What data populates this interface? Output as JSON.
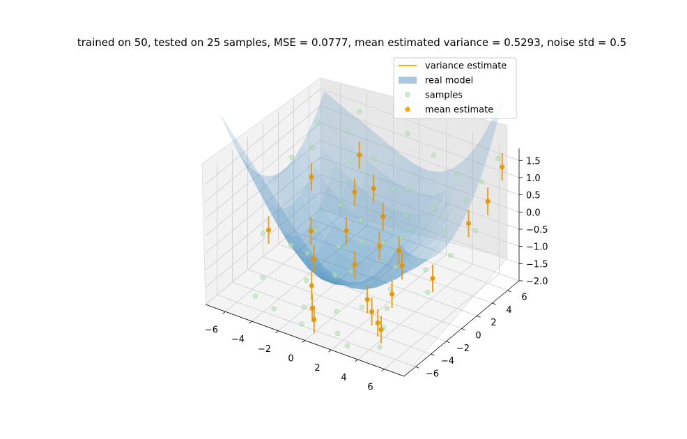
{
  "chart_data": {
    "type": "scatter3d",
    "title": "trained on 50, tested on 25 samples, MSE = 0.0777, mean estimated variance = 0.5293, noise std = 0.5",
    "xlim": [
      -7.5,
      7.5
    ],
    "ylim": [
      -7.5,
      7.5
    ],
    "zlim": [
      -2.0,
      1.85
    ],
    "x_ticks": [
      "−6",
      "−4",
      "−2",
      "0",
      "2",
      "4",
      "6"
    ],
    "x_tick_values": [
      -6,
      -4,
      -2,
      0,
      2,
      4,
      6
    ],
    "y_ticks": [
      "−6",
      "−4",
      "−2",
      "0",
      "2",
      "4",
      "6"
    ],
    "y_tick_values": [
      -6,
      -4,
      -2,
      0,
      2,
      4,
      6
    ],
    "z_ticks": [
      "−2.0",
      "−1.5",
      "−1.0",
      "−0.5",
      "0.0",
      "0.5",
      "1.0",
      "1.5"
    ],
    "z_tick_values": [
      -2.0,
      -1.5,
      -1.0,
      -0.5,
      0.0,
      0.5,
      1.0,
      1.5
    ],
    "grid": true,
    "legend_position": "top-right",
    "legend": [
      {
        "label": "variance estimate",
        "kind": "line",
        "color": "#ffa500"
      },
      {
        "label": "real model",
        "kind": "patch",
        "color": "#a9c8df"
      },
      {
        "label": "samples",
        "kind": "marker",
        "color": "#b6deb6"
      },
      {
        "label": "mean estimate",
        "kind": "marker",
        "color": "#ffa500"
      }
    ],
    "surface_color": "#1f77b4",
    "samples": [
      [
        -6.8,
        -1.2,
        -1.0
      ],
      [
        -6.2,
        1.5,
        0.8
      ],
      [
        -5.5,
        3.0,
        0.9
      ],
      [
        -5.8,
        -3.0,
        -1.8
      ],
      [
        -4.5,
        5.8,
        1.0
      ],
      [
        -4.0,
        6.5,
        1.5
      ],
      [
        -3.5,
        4.5,
        0.5
      ],
      [
        -2.0,
        5.0,
        0.7
      ],
      [
        -3.0,
        -2.0,
        -0.9
      ],
      [
        -2.2,
        -3.5,
        -1.3
      ],
      [
        -1.5,
        -5.0,
        -1.7
      ],
      [
        -1.0,
        -6.2,
        -1.9
      ],
      [
        -0.5,
        2.5,
        0.2
      ],
      [
        0.3,
        3.5,
        0.4
      ],
      [
        0.8,
        4.5,
        0.3
      ],
      [
        1.5,
        3.0,
        -0.1
      ],
      [
        1.0,
        1.0,
        -0.6
      ],
      [
        0.0,
        0.0,
        -0.5
      ],
      [
        -1.0,
        1.5,
        -0.3
      ],
      [
        2.0,
        1.5,
        -0.4
      ],
      [
        2.5,
        0.0,
        -0.9
      ],
      [
        3.0,
        -1.5,
        -1.2
      ],
      [
        3.6,
        -3.0,
        -1.4
      ],
      [
        4.2,
        -4.5,
        -1.6
      ],
      [
        4.8,
        -6.0,
        -1.8
      ],
      [
        5.0,
        2.0,
        0.1
      ],
      [
        5.5,
        4.0,
        0.7
      ],
      [
        6.0,
        5.2,
        1.1
      ],
      [
        6.5,
        6.5,
        1.6
      ],
      [
        6.8,
        3.0,
        0.2
      ],
      [
        5.8,
        -1.5,
        -0.9
      ],
      [
        4.5,
        0.5,
        -0.8
      ],
      [
        2.0,
        -3.5,
        -1.5
      ],
      [
        0.5,
        -4.2,
        -1.7
      ],
      [
        -0.8,
        -2.2,
        -1.2
      ],
      [
        -3.8,
        0.5,
        -0.8
      ],
      [
        -4.8,
        -1.0,
        -1.1
      ],
      [
        -6.0,
        4.5,
        1.3
      ],
      [
        3.8,
        5.8,
        0.9
      ],
      [
        1.8,
        6.2,
        1.1
      ],
      [
        -2.8,
        2.0,
        -0.2
      ],
      [
        -1.8,
        0.0,
        -0.9
      ],
      [
        0.0,
        -1.5,
        -1.1
      ],
      [
        1.5,
        -5.8,
        -1.9
      ],
      [
        6.2,
        0.8,
        -0.2
      ],
      [
        -5.2,
        -5.0,
        -1.9
      ],
      [
        -3.2,
        -6.0,
        -1.8
      ],
      [
        3.2,
        3.8,
        0.2
      ],
      [
        2.8,
        -6.8,
        -1.9
      ],
      [
        -0.5,
        6.8,
        1.3
      ]
    ],
    "mean_estimates": [
      [
        -6.5,
        -1.0,
        -0.9
      ],
      [
        -5.0,
        2.0,
        0.3
      ],
      [
        -3.0,
        4.8,
        0.7
      ],
      [
        -2.5,
        -2.0,
        -1.0
      ],
      [
        -1.8,
        -3.5,
        -1.4
      ],
      [
        -1.0,
        -4.8,
        -1.7
      ],
      [
        -0.4,
        -5.6,
        -1.8
      ],
      [
        -2.2,
        2.8,
        0.1
      ],
      [
        -1.0,
        3.2,
        0.3
      ],
      [
        0.4,
        2.0,
        -0.1
      ],
      [
        1.0,
        0.5,
        -0.6
      ],
      [
        2.3,
        0.8,
        -0.6
      ],
      [
        3.0,
        0.0,
        -0.8
      ],
      [
        2.0,
        -2.8,
        -1.4
      ],
      [
        2.8,
        -3.6,
        -1.5
      ],
      [
        3.6,
        -4.2,
        -1.6
      ],
      [
        4.2,
        -4.8,
        -1.6
      ],
      [
        3.4,
        -2.0,
        -1.2
      ],
      [
        5.2,
        0.2,
        -0.9
      ],
      [
        6.0,
        3.5,
        0.2
      ],
      [
        6.7,
        4.8,
        0.7
      ],
      [
        6.8,
        6.5,
        1.4
      ],
      [
        -4.0,
        0.2,
        -0.8
      ],
      [
        -1.5,
        0.5,
        -0.5
      ],
      [
        0.0,
        -1.0,
        -1.0
      ]
    ],
    "variance_estimate": 0.5293
  }
}
